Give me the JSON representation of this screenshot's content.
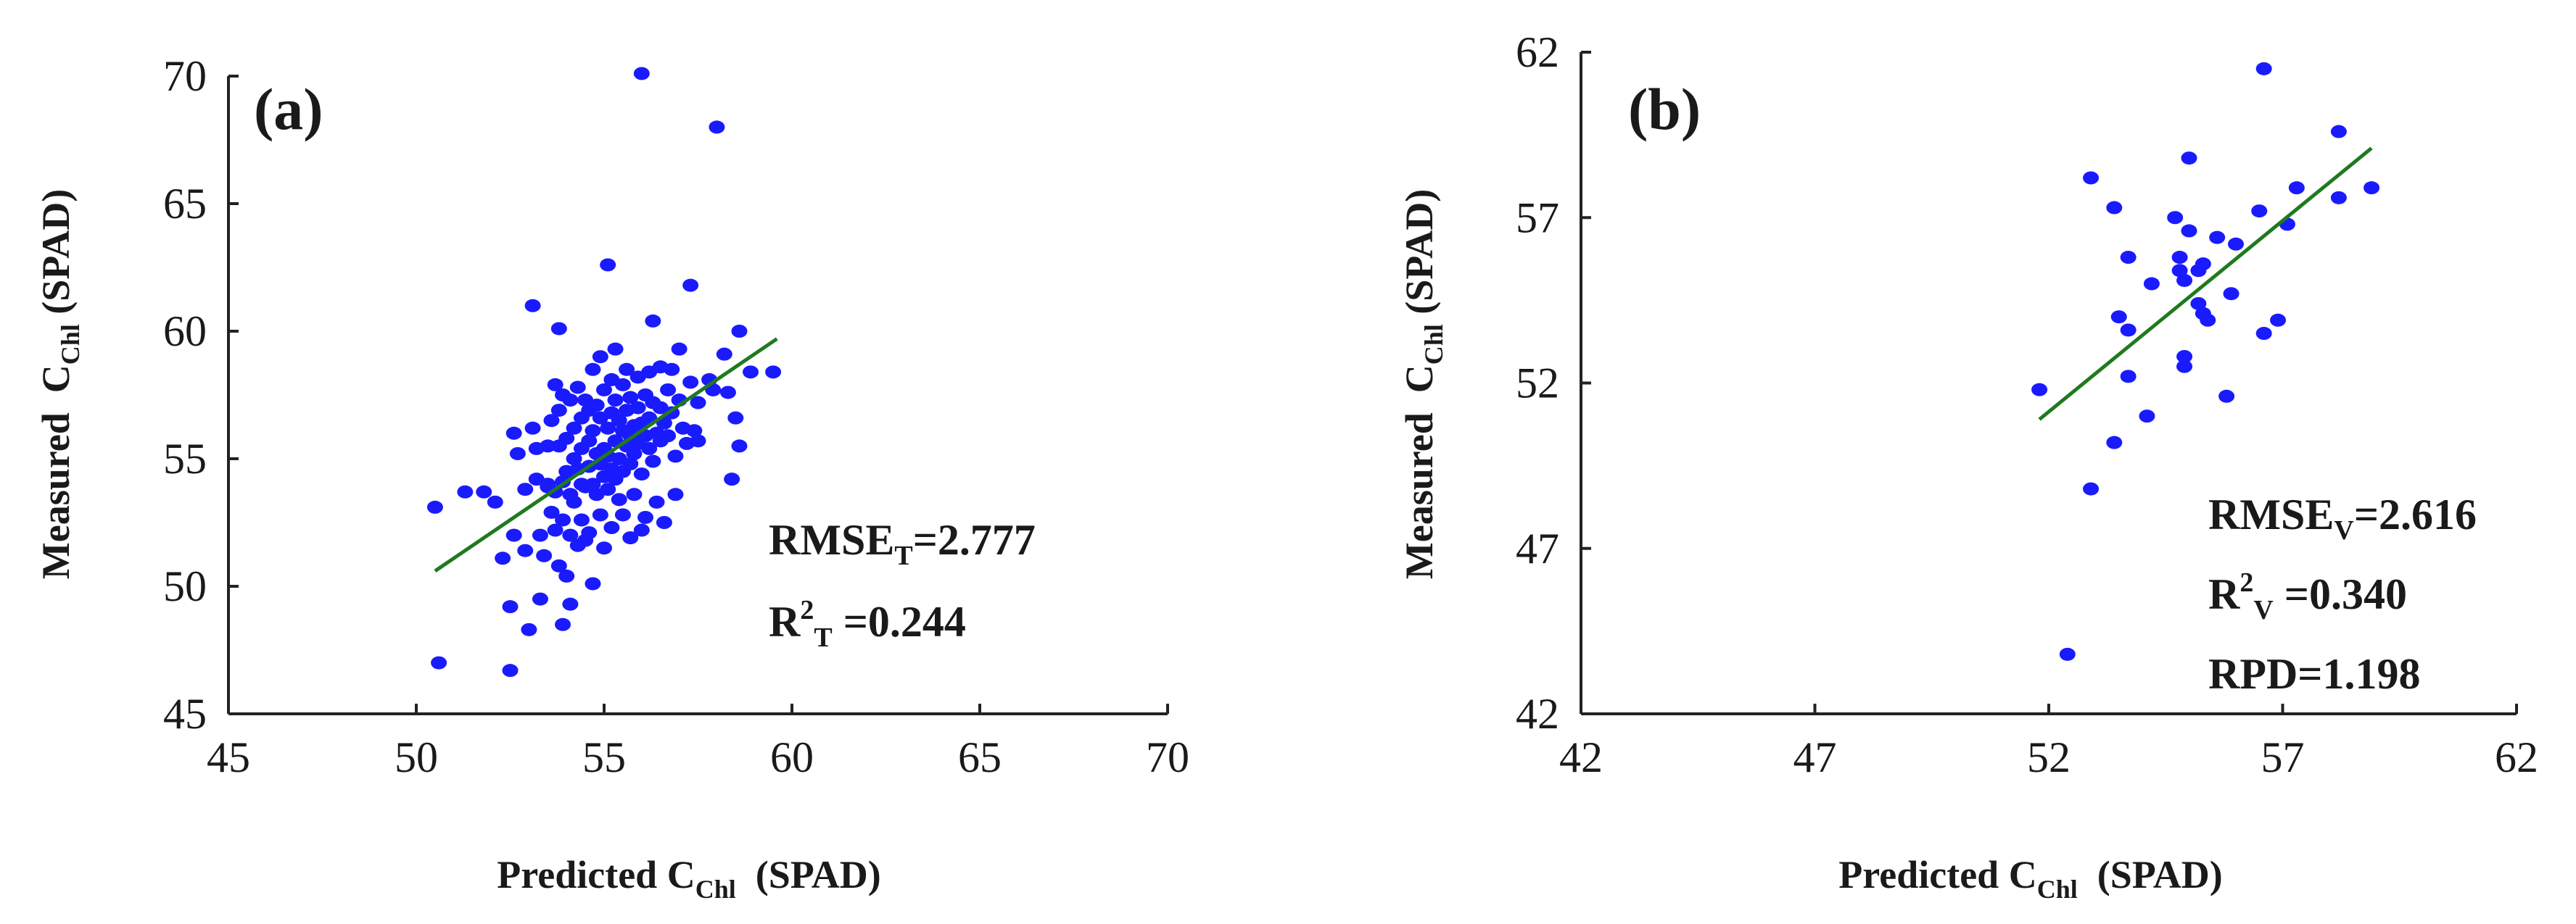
{
  "chart_data": [
    {
      "type": "scatter",
      "panel_label": "(a)",
      "xlabel": "Predicted C_Chl (SPAD)",
      "xlabel_main": "Predicted C",
      "xlabel_sub": "Chl",
      "xlabel_unit": "  (SPAD)",
      "ylabel": "Measured C_Chl (SPAD)",
      "ylabel_main": "Measured  C",
      "ylabel_sub": "Chl",
      "ylabel_unit": " (SPAD)",
      "xlim": [
        45,
        70
      ],
      "ylim": [
        45,
        70
      ],
      "xticks": [
        "45",
        "50",
        "55",
        "60",
        "65",
        "70"
      ],
      "yticks": [
        "45",
        "50",
        "55",
        "60",
        "65",
        "70"
      ],
      "tick_values": [
        45,
        50,
        55,
        60,
        65,
        70
      ],
      "point_color": "#1a1aff",
      "line_color": "#1f7a1f",
      "fit_line": {
        "x": [
          50.5,
          59.6
        ],
        "y": [
          50.6,
          59.7
        ]
      },
      "stats": [
        {
          "main": "RMSE",
          "sub": "T",
          "sup": "",
          "rest": "=2.777"
        },
        {
          "main": "R",
          "sub": "T",
          "sup": "2",
          "rest": " =0.244"
        }
      ],
      "points": [
        [
          50.5,
          53.1
        ],
        [
          50.6,
          47.0
        ],
        [
          51.3,
          53.7
        ],
        [
          51.8,
          53.7
        ],
        [
          52.1,
          53.3
        ],
        [
          52.3,
          51.1
        ],
        [
          52.5,
          49.2
        ],
        [
          52.5,
          46.7
        ],
        [
          52.6,
          56.0
        ],
        [
          52.6,
          52.0
        ],
        [
          52.7,
          55.2
        ],
        [
          52.9,
          53.8
        ],
        [
          52.9,
          51.4
        ],
        [
          53.0,
          48.3
        ],
        [
          53.1,
          61.0
        ],
        [
          53.1,
          56.2
        ],
        [
          53.2,
          55.4
        ],
        [
          53.2,
          54.2
        ],
        [
          53.3,
          52.0
        ],
        [
          53.3,
          49.5
        ],
        [
          53.4,
          51.2
        ],
        [
          53.5,
          55.5
        ],
        [
          53.5,
          54.0
        ],
        [
          53.5,
          53.9
        ],
        [
          53.6,
          56.5
        ],
        [
          53.6,
          52.9
        ],
        [
          53.7,
          57.9
        ],
        [
          53.7,
          53.7
        ],
        [
          53.7,
          52.2
        ],
        [
          53.8,
          60.1
        ],
        [
          53.8,
          56.9
        ],
        [
          53.8,
          55.5
        ],
        [
          53.8,
          50.8
        ],
        [
          53.9,
          57.5
        ],
        [
          53.9,
          54.1
        ],
        [
          53.9,
          52.6
        ],
        [
          53.9,
          48.5
        ],
        [
          54.0,
          55.8
        ],
        [
          54.0,
          54.5
        ],
        [
          54.0,
          50.4
        ],
        [
          54.1,
          57.3
        ],
        [
          54.1,
          53.6
        ],
        [
          54.1,
          52.0
        ],
        [
          54.1,
          49.3
        ],
        [
          54.2,
          56.2
        ],
        [
          54.2,
          55.0
        ],
        [
          54.2,
          53.3
        ],
        [
          54.3,
          57.8
        ],
        [
          54.3,
          54.6
        ],
        [
          54.3,
          51.6
        ],
        [
          54.4,
          56.6
        ],
        [
          54.4,
          55.4
        ],
        [
          54.4,
          54.0
        ],
        [
          54.4,
          52.6
        ],
        [
          54.5,
          57.3
        ],
        [
          54.5,
          53.9
        ],
        [
          54.5,
          51.8
        ],
        [
          54.6,
          56.9
        ],
        [
          54.6,
          55.7
        ],
        [
          54.6,
          54.7
        ],
        [
          54.6,
          52.1
        ],
        [
          54.7,
          58.5
        ],
        [
          54.7,
          56.1
        ],
        [
          54.7,
          54.0
        ],
        [
          54.7,
          50.1
        ],
        [
          54.8,
          57.1
        ],
        [
          54.8,
          55.2
        ],
        [
          54.8,
          53.6
        ],
        [
          54.9,
          59.0
        ],
        [
          54.9,
          56.6
        ],
        [
          54.9,
          54.8
        ],
        [
          54.9,
          52.8
        ],
        [
          55.0,
          57.7
        ],
        [
          55.0,
          55.4
        ],
        [
          55.0,
          54.3
        ],
        [
          55.0,
          51.5
        ],
        [
          55.1,
          56.2
        ],
        [
          55.1,
          55.1
        ],
        [
          55.1,
          53.8
        ],
        [
          55.1,
          62.6
        ],
        [
          55.2,
          58.1
        ],
        [
          55.2,
          56.8
        ],
        [
          55.2,
          54.6
        ],
        [
          55.2,
          52.3
        ],
        [
          55.3,
          57.3
        ],
        [
          55.3,
          55.7
        ],
        [
          55.3,
          54.2
        ],
        [
          55.3,
          59.3
        ],
        [
          55.4,
          56.5
        ],
        [
          55.4,
          55.0
        ],
        [
          55.4,
          53.4
        ],
        [
          55.5,
          57.9
        ],
        [
          55.5,
          56.1
        ],
        [
          55.5,
          54.5
        ],
        [
          55.5,
          52.8
        ],
        [
          55.6,
          58.5
        ],
        [
          55.6,
          56.9
        ],
        [
          55.6,
          55.5
        ],
        [
          55.7,
          57.4
        ],
        [
          55.7,
          55.9
        ],
        [
          55.7,
          54.8
        ],
        [
          55.7,
          51.9
        ],
        [
          55.8,
          56.3
        ],
        [
          55.8,
          55.2
        ],
        [
          55.8,
          53.6
        ],
        [
          55.9,
          58.2
        ],
        [
          55.9,
          57.0
        ],
        [
          55.9,
          55.6
        ],
        [
          56.0,
          70.1
        ],
        [
          56.0,
          56.4
        ],
        [
          56.0,
          54.4
        ],
        [
          56.0,
          52.2
        ],
        [
          56.1,
          57.5
        ],
        [
          56.1,
          55.9
        ],
        [
          56.1,
          52.7
        ],
        [
          56.2,
          58.4
        ],
        [
          56.2,
          56.6
        ],
        [
          56.2,
          55.4
        ],
        [
          56.3,
          60.4
        ],
        [
          56.3,
          57.2
        ],
        [
          56.3,
          54.9
        ],
        [
          56.4,
          56.0
        ],
        [
          56.4,
          53.3
        ],
        [
          56.5,
          58.6
        ],
        [
          56.5,
          57.0
        ],
        [
          56.5,
          55.7
        ],
        [
          56.6,
          56.4
        ],
        [
          56.6,
          52.5
        ],
        [
          56.7,
          57.7
        ],
        [
          56.7,
          55.9
        ],
        [
          56.8,
          58.5
        ],
        [
          56.8,
          56.8
        ],
        [
          56.9,
          55.1
        ],
        [
          56.9,
          53.6
        ],
        [
          57.0,
          59.3
        ],
        [
          57.0,
          57.3
        ],
        [
          57.1,
          56.2
        ],
        [
          57.2,
          55.6
        ],
        [
          57.3,
          61.8
        ],
        [
          57.3,
          58.0
        ],
        [
          57.4,
          56.1
        ],
        [
          57.5,
          55.7
        ],
        [
          57.5,
          57.2
        ],
        [
          57.8,
          58.1
        ],
        [
          57.9,
          57.7
        ],
        [
          58.0,
          68.0
        ],
        [
          58.2,
          59.1
        ],
        [
          58.3,
          57.6
        ],
        [
          58.4,
          54.2
        ],
        [
          58.5,
          56.6
        ],
        [
          58.6,
          60.0
        ],
        [
          58.6,
          55.5
        ],
        [
          58.9,
          58.4
        ],
        [
          59.5,
          58.4
        ]
      ]
    },
    {
      "type": "scatter",
      "panel_label": "(b)",
      "xlabel": "Predicted C_Chl (SPAD)",
      "xlabel_main": "Predicted C",
      "xlabel_sub": "Chl",
      "xlabel_unit": "  (SPAD)",
      "ylabel": "Measured C_Chl (SPAD)",
      "ylabel_main": "Measured  C",
      "ylabel_sub": "Chl",
      "ylabel_unit": " (SPAD)",
      "xlim": [
        42,
        62
      ],
      "ylim": [
        42,
        62
      ],
      "xticks": [
        "42",
        "47",
        "52",
        "57",
        "62"
      ],
      "yticks": [
        "42",
        "47",
        "52",
        "57",
        "62"
      ],
      "tick_values": [
        42,
        47,
        52,
        57,
        62
      ],
      "point_color": "#1a1aff",
      "line_color": "#1f7a1f",
      "fit_line": {
        "x": [
          51.8,
          58.9
        ],
        "y": [
          50.9,
          59.1
        ]
      },
      "stats": [
        {
          "main": "RMSE",
          "sub": "V",
          "sup": "",
          "rest": "=2.616"
        },
        {
          "main": "R",
          "sub": "V",
          "sup": "2",
          "rest": " =0.340"
        },
        {
          "main": "RPD=1.198",
          "sub": "",
          "sup": "",
          "rest": ""
        }
      ],
      "points": [
        [
          51.8,
          51.8
        ],
        [
          52.4,
          43.8
        ],
        [
          52.9,
          48.8
        ],
        [
          52.9,
          58.2
        ],
        [
          53.4,
          57.3
        ],
        [
          53.4,
          50.2
        ],
        [
          53.5,
          54.0
        ],
        [
          53.7,
          55.8
        ],
        [
          53.7,
          53.6
        ],
        [
          53.7,
          52.2
        ],
        [
          54.1,
          51.0
        ],
        [
          54.2,
          55.0
        ],
        [
          54.7,
          57.0
        ],
        [
          54.8,
          55.8
        ],
        [
          54.8,
          55.4
        ],
        [
          54.9,
          55.1
        ],
        [
          54.9,
          52.8
        ],
        [
          54.9,
          52.5
        ],
        [
          55.0,
          56.6
        ],
        [
          55.0,
          58.8
        ],
        [
          55.2,
          55.4
        ],
        [
          55.2,
          54.4
        ],
        [
          55.3,
          55.6
        ],
        [
          55.3,
          54.1
        ],
        [
          55.4,
          53.9
        ],
        [
          55.6,
          56.4
        ],
        [
          55.8,
          51.6
        ],
        [
          55.9,
          54.7
        ],
        [
          56.0,
          56.2
        ],
        [
          56.5,
          57.2
        ],
        [
          56.6,
          53.5
        ],
        [
          56.6,
          61.5
        ],
        [
          56.9,
          53.9
        ],
        [
          57.1,
          56.8
        ],
        [
          57.3,
          57.9
        ],
        [
          58.2,
          57.6
        ],
        [
          58.2,
          59.6
        ],
        [
          58.9,
          57.9
        ]
      ]
    }
  ]
}
